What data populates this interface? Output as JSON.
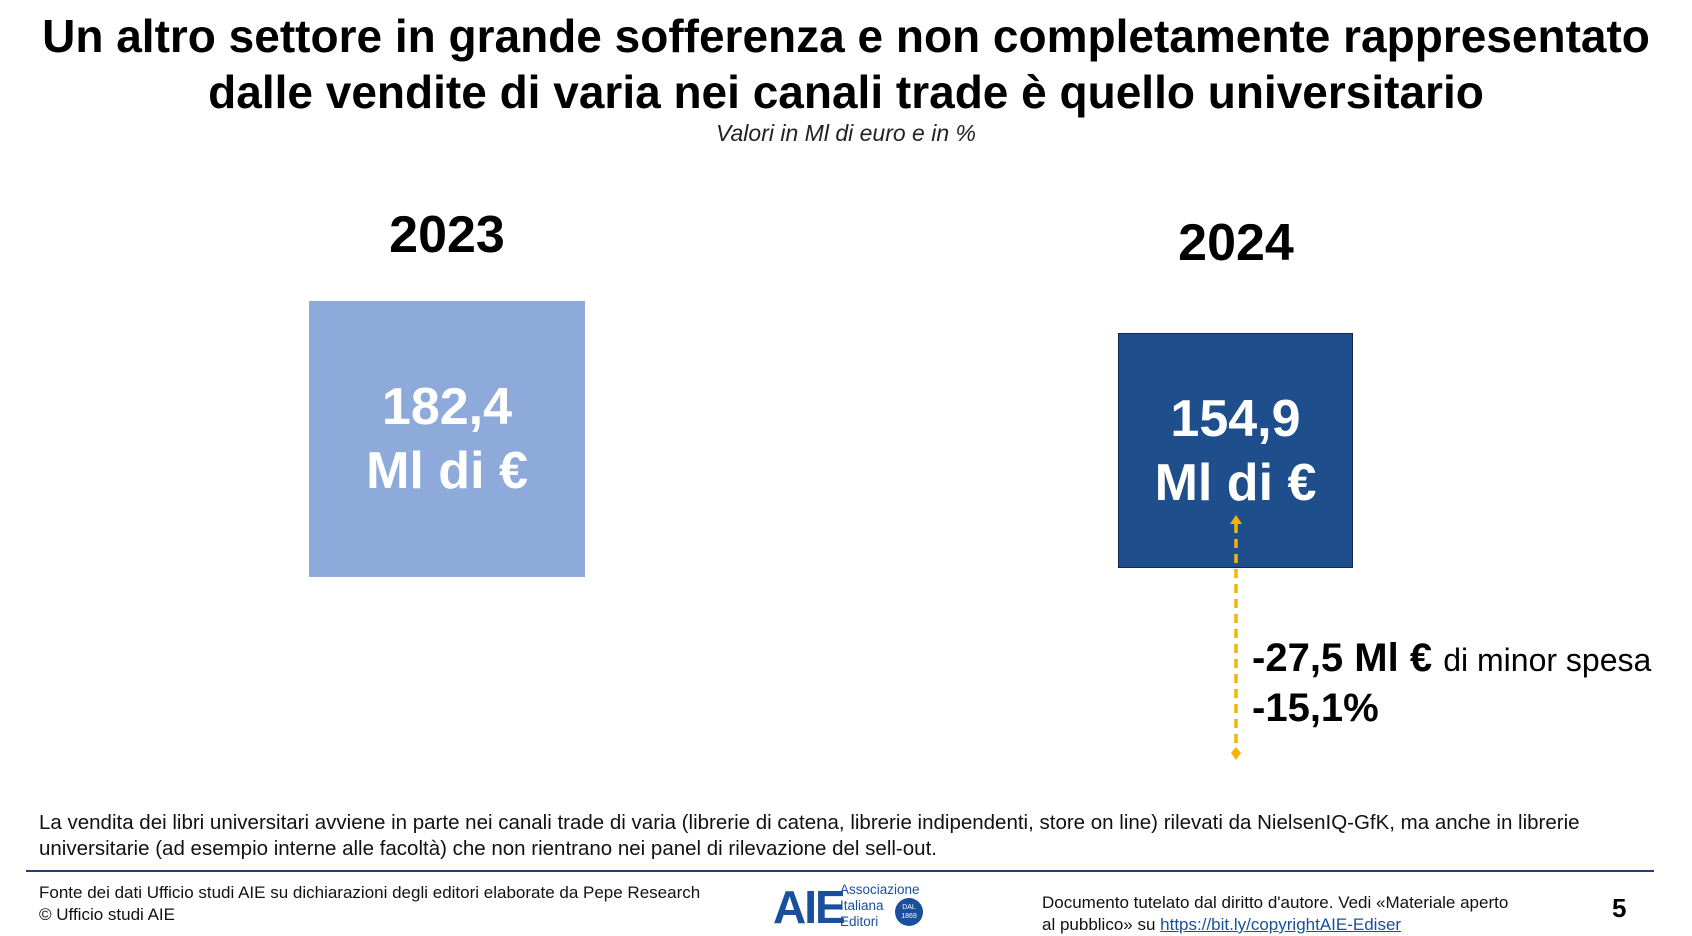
{
  "header": {
    "title_line1": "Un altro settore in grande sofferenza e non completamente rappresentato",
    "title_line2": "dalle vendite di varia nei canali trade è quello universitario",
    "subtitle": "Valori in Ml di euro e in %"
  },
  "chart_data": {
    "type": "bar",
    "categories": [
      "2023",
      "2024"
    ],
    "values": [
      182.4,
      154.9
    ],
    "value_labels": [
      {
        "value": "182,4",
        "unit": "Ml di €"
      },
      {
        "value": "154,9",
        "unit": "Ml di €"
      }
    ],
    "colors": [
      "#8eaadb",
      "#1f4e8c"
    ],
    "annotation": {
      "delta_value": "-27,5 Ml €",
      "delta_note": "di minor spesa",
      "delta_pct": "-15,1%",
      "arrow_color": "#f4b400"
    }
  },
  "description": "La vendita dei libri universitari avviene in parte nei canali trade di varia (librerie di catena, librerie indipendenti, store on line) rilevati da NielsenIQ-GfK, ma anche in librerie universitarie (ad esempio interne alle facoltà) che non rientrano nei panel di rilevazione del sell-out.",
  "footer": {
    "source_line1": "Fonte dei dati Ufficio studi AIE su dichiarazioni degli editori elaborate da Pepe Research",
    "source_line2": "© Ufficio studi AIE",
    "logo_mark": "AIE",
    "logo_line1": "Associazione",
    "logo_line2": "Italiana",
    "logo_line3": "Editori",
    "logo_seal_line1": "DAL",
    "logo_seal_line2": "1869",
    "copyright_text": "Documento tutelato dal diritto d'autore. Vedi «Materiale aperto al pubblico» su ",
    "copyright_link": "https://bit.ly/copyrightAIE-Ediser",
    "page_number": "5"
  }
}
